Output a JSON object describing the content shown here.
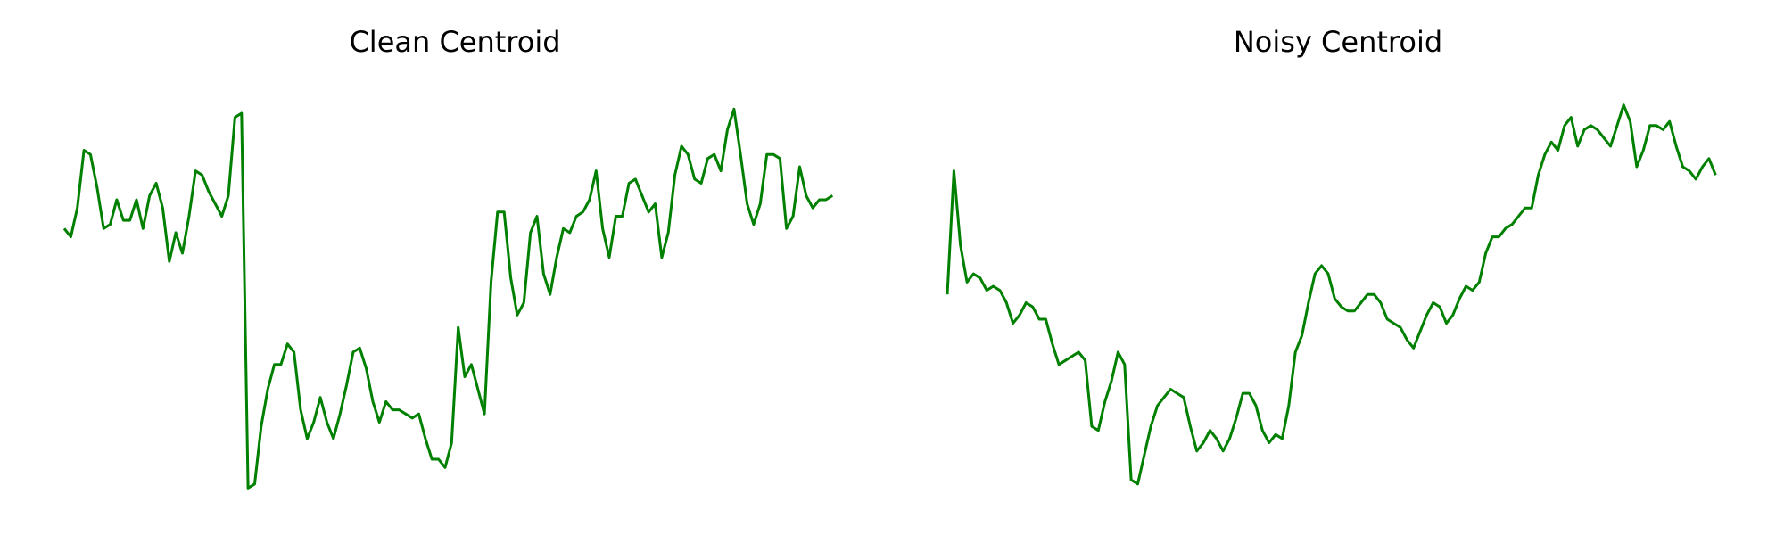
{
  "figure": {
    "line_color": "#008000",
    "background": "#ffffff"
  },
  "chart_data": [
    {
      "type": "line",
      "title": "Clean Centroid",
      "xlabel": "",
      "ylabel": "",
      "grid": false,
      "axes_visible": false,
      "xlim": [
        0,
        119
      ],
      "ylim": [
        0,
        1
      ],
      "series": [
        {
          "values": [
            0.64,
            0.62,
            0.69,
            0.83,
            0.82,
            0.74,
            0.64,
            0.65,
            0.71,
            0.66,
            0.66,
            0.71,
            0.64,
            0.72,
            0.75,
            0.69,
            0.56,
            0.63,
            0.58,
            0.67,
            0.78,
            0.77,
            0.73,
            0.7,
            0.67,
            0.72,
            0.91,
            0.92,
            0.01,
            0.02,
            0.16,
            0.25,
            0.31,
            0.31,
            0.36,
            0.34,
            0.2,
            0.13,
            0.17,
            0.23,
            0.17,
            0.13,
            0.19,
            0.26,
            0.34,
            0.35,
            0.3,
            0.22,
            0.17,
            0.22,
            0.2,
            0.2,
            0.19,
            0.18,
            0.19,
            0.13,
            0.08,
            0.08,
            0.06,
            0.12,
            0.4,
            0.28,
            0.31,
            0.25,
            0.19,
            0.51,
            0.68,
            0.68,
            0.52,
            0.43,
            0.46,
            0.63,
            0.67,
            0.53,
            0.48,
            0.57,
            0.64,
            0.63,
            0.67,
            0.68,
            0.71,
            0.78,
            0.64,
            0.57,
            0.67,
            0.67,
            0.75,
            0.76,
            0.72,
            0.68,
            0.7,
            0.57,
            0.63,
            0.77,
            0.84,
            0.82,
            0.76,
            0.75,
            0.81,
            0.82,
            0.78,
            0.88,
            0.93,
            0.82,
            0.7,
            0.65,
            0.7,
            0.82,
            0.82,
            0.81,
            0.64,
            0.67,
            0.79,
            0.72,
            0.69,
            0.71,
            0.71,
            0.72
          ]
        }
      ]
    },
    {
      "type": "line",
      "title": "Noisy Centroid",
      "xlabel": "",
      "ylabel": "",
      "grid": false,
      "axes_visible": false,
      "xlim": [
        0,
        119
      ],
      "ylim": [
        0,
        1
      ],
      "series": [
        {
          "values": [
            0.48,
            0.78,
            0.6,
            0.51,
            0.53,
            0.52,
            0.49,
            0.5,
            0.49,
            0.46,
            0.41,
            0.43,
            0.46,
            0.45,
            0.42,
            0.42,
            0.36,
            0.31,
            0.32,
            0.33,
            0.34,
            0.32,
            0.16,
            0.15,
            0.22,
            0.27,
            0.34,
            0.31,
            0.03,
            0.02,
            0.09,
            0.16,
            0.21,
            0.23,
            0.25,
            0.24,
            0.23,
            0.16,
            0.1,
            0.12,
            0.15,
            0.13,
            0.1,
            0.13,
            0.18,
            0.24,
            0.24,
            0.21,
            0.15,
            0.12,
            0.14,
            0.13,
            0.21,
            0.34,
            0.38,
            0.46,
            0.53,
            0.55,
            0.53,
            0.47,
            0.45,
            0.44,
            0.44,
            0.46,
            0.48,
            0.48,
            0.46,
            0.42,
            0.41,
            0.4,
            0.37,
            0.35,
            0.39,
            0.43,
            0.46,
            0.45,
            0.41,
            0.43,
            0.47,
            0.5,
            0.49,
            0.51,
            0.58,
            0.62,
            0.62,
            0.64,
            0.65,
            0.67,
            0.69,
            0.69,
            0.77,
            0.82,
            0.85,
            0.83,
            0.89,
            0.91,
            0.84,
            0.88,
            0.89,
            0.88,
            0.86,
            0.84,
            0.89,
            0.94,
            0.9,
            0.79,
            0.83,
            0.89,
            0.89,
            0.88,
            0.9,
            0.84,
            0.79,
            0.78,
            0.76,
            0.79,
            0.81,
            0.77
          ]
        }
      ]
    }
  ]
}
